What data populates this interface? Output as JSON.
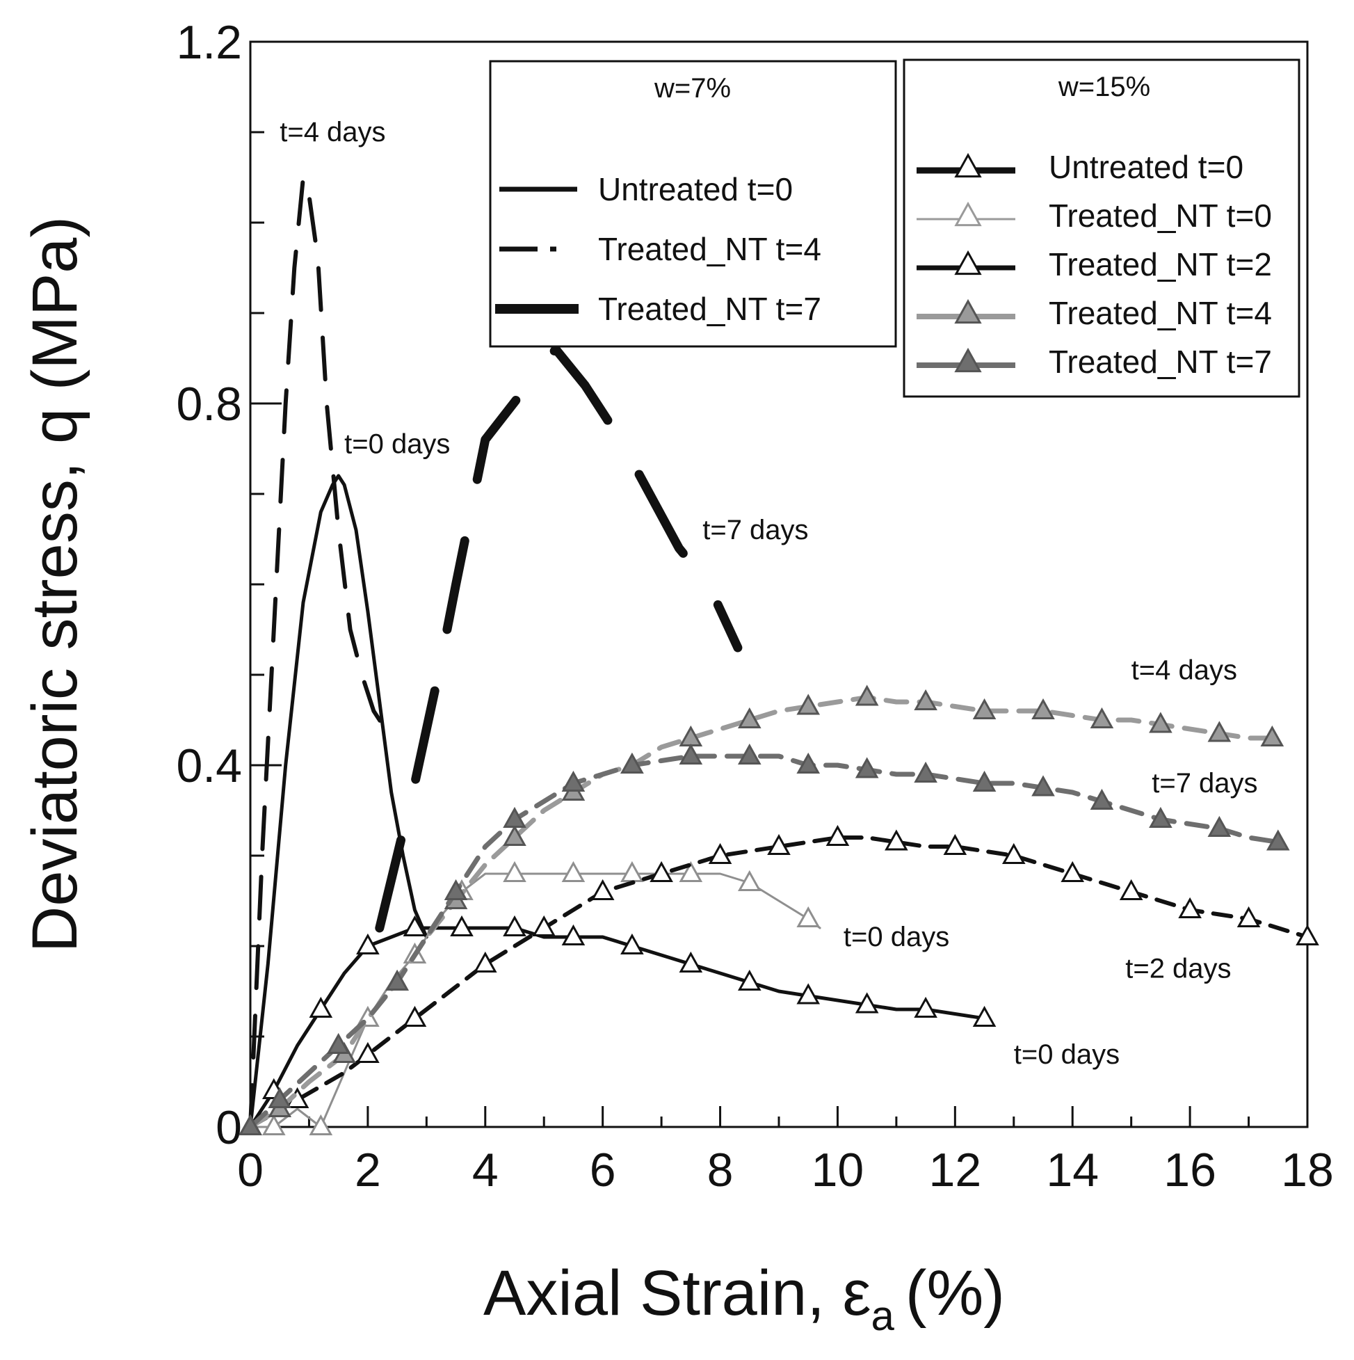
{
  "chart_data": {
    "type": "line",
    "title": "",
    "xlabel": "Axial Strain, ε",
    "xlabel_sub": "a",
    "xlabel_unit": "(%)",
    "ylabel": "Deviatoric stress, q (MPa)",
    "xlim": [
      0,
      18
    ],
    "ylim": [
      0,
      1.2
    ],
    "xticks": [
      0,
      2,
      4,
      6,
      8,
      10,
      12,
      14,
      16,
      18
    ],
    "xtick_labels": [
      "0",
      "2",
      "4",
      "6",
      "8",
      "10",
      "12",
      "14",
      "16",
      "18"
    ],
    "yticks": [
      0,
      0.4,
      0.8,
      1.2
    ],
    "ytick_labels": [
      "0",
      "0.4",
      "0.8",
      "1.2"
    ],
    "grid": false,
    "legends": [
      {
        "title": "w=7%",
        "placement": "top-center",
        "entries": [
          "Untreated t=0",
          "Treated_NT t=4",
          "Treated_NT t=7"
        ]
      },
      {
        "title": "w=15%",
        "placement": "top-right",
        "entries": [
          "Untreated t=0",
          "Treated_NT t=0",
          "Treated_NT t=2",
          "Treated_NT t=4",
          "Treated_NT t=7"
        ]
      }
    ],
    "annotations": [
      {
        "text": "t=4 days",
        "x": 0.5,
        "y": 1.09
      },
      {
        "text": "t=0 days",
        "x": 1.6,
        "y": 0.745
      },
      {
        "text": "t=7 days",
        "x": 7.7,
        "y": 0.65
      },
      {
        "text": "t=4 days",
        "x": 15.0,
        "y": 0.495
      },
      {
        "text": "t=7 days",
        "x": 15.35,
        "y": 0.37
      },
      {
        "text": "t=0 days",
        "x": 10.1,
        "y": 0.2
      },
      {
        "text": "t=2 days",
        "x": 14.9,
        "y": 0.165
      },
      {
        "text": "t=0 days",
        "x": 13.0,
        "y": 0.07
      }
    ],
    "series": [
      {
        "name": "w=7% Untreated t=0",
        "style": "solid",
        "color": "#111111",
        "x": [
          0,
          0.3,
          0.6,
          0.9,
          1.2,
          1.4,
          1.5,
          1.6,
          1.8,
          2.0,
          2.2,
          2.4,
          2.6,
          2.8,
          3.0
        ],
        "y": [
          0,
          0.18,
          0.4,
          0.58,
          0.68,
          0.71,
          0.72,
          0.71,
          0.66,
          0.57,
          0.47,
          0.37,
          0.3,
          0.24,
          0.21
        ]
      },
      {
        "name": "w=7% Treated_NT t=4",
        "style": "dashed",
        "color": "#111111",
        "x": [
          0,
          0.2,
          0.4,
          0.6,
          0.75,
          0.9,
          1.0,
          1.15,
          1.3,
          1.5,
          1.7,
          1.9,
          2.1,
          2.3,
          2.5
        ],
        "y": [
          0,
          0.3,
          0.55,
          0.8,
          0.95,
          1.05,
          1.03,
          0.96,
          0.8,
          0.66,
          0.55,
          0.5,
          0.46,
          0.44,
          0.43
        ]
      },
      {
        "name": "w=7% Treated_NT t=7",
        "style": "thick",
        "color": "#111111",
        "x": [
          2.2,
          2.5,
          2.8,
          3.2,
          3.5,
          3.75,
          4.0,
          5.2,
          5.7,
          6.3,
          7.3,
          7.8,
          8.3
        ],
        "y": [
          0.22,
          0.3,
          0.38,
          0.5,
          0.6,
          0.68,
          0.76,
          0.86,
          0.82,
          0.76,
          0.64,
          0.6,
          0.53
        ]
      },
      {
        "name": "w=15% Untreated t=0",
        "style": "solid-triangle-open",
        "color": "#111111",
        "x": [
          0,
          0.4,
          0.8,
          1.2,
          1.6,
          2.0,
          2.4,
          2.8,
          3.2,
          3.6,
          4.0,
          4.5,
          5.0,
          5.5,
          6.0,
          6.5,
          7.0,
          7.5,
          8.0,
          8.5,
          9.0,
          9.5,
          10.0,
          10.5,
          11.0,
          11.5,
          12.0,
          12.5
        ],
        "y": [
          0,
          0.04,
          0.09,
          0.13,
          0.17,
          0.2,
          0.21,
          0.22,
          0.22,
          0.22,
          0.22,
          0.22,
          0.21,
          0.21,
          0.21,
          0.2,
          0.19,
          0.18,
          0.17,
          0.16,
          0.15,
          0.145,
          0.14,
          0.135,
          0.13,
          0.13,
          0.125,
          0.12
        ]
      },
      {
        "name": "w=15% Treated_NT t=0",
        "style": "thin-triangle-open",
        "color": "#8f8f8f",
        "x": [
          0,
          0.4,
          0.8,
          1.2,
          1.6,
          2.0,
          2.4,
          2.8,
          3.2,
          3.6,
          4.0,
          4.5,
          5.0,
          5.5,
          6.0,
          6.5,
          7.0,
          7.5,
          8.0,
          8.5,
          9.0,
          9.5,
          9.7
        ],
        "y": [
          0,
          0.0,
          0.02,
          0.0,
          0.06,
          0.12,
          0.16,
          0.19,
          0.23,
          0.26,
          0.28,
          0.28,
          0.28,
          0.28,
          0.28,
          0.28,
          0.28,
          0.28,
          0.28,
          0.27,
          0.25,
          0.23,
          0.22
        ]
      },
      {
        "name": "w=15% Treated_NT t=2",
        "style": "dashed-triangle-open",
        "color": "#111111",
        "x": [
          0,
          0.8,
          1.6,
          2.0,
          2.4,
          2.8,
          3.4,
          4.0,
          4.5,
          5.0,
          5.5,
          6.0,
          6.5,
          7.0,
          7.5,
          8.0,
          8.5,
          9.0,
          9.5,
          10.0,
          10.5,
          11.0,
          11.5,
          12.0,
          12.5,
          13.0,
          13.5,
          14.0,
          14.5,
          15.0,
          15.5,
          16.0,
          16.5,
          17.0,
          17.5,
          18.0
        ],
        "y": [
          0,
          0.03,
          0.06,
          0.08,
          0.1,
          0.12,
          0.15,
          0.18,
          0.2,
          0.22,
          0.24,
          0.26,
          0.27,
          0.28,
          0.29,
          0.3,
          0.305,
          0.31,
          0.315,
          0.32,
          0.32,
          0.315,
          0.31,
          0.31,
          0.305,
          0.3,
          0.29,
          0.28,
          0.27,
          0.26,
          0.25,
          0.24,
          0.235,
          0.23,
          0.22,
          0.21
        ]
      },
      {
        "name": "w=15% Treated_NT t=4",
        "style": "dashed-triangle-light",
        "color": "#9a9a9a",
        "x": [
          0,
          0.5,
          1.0,
          1.6,
          2.0,
          2.5,
          3.0,
          3.5,
          4.0,
          4.5,
          5.0,
          5.5,
          6.0,
          6.5,
          7.0,
          7.5,
          8.0,
          8.5,
          9.0,
          9.5,
          10.0,
          10.5,
          11.0,
          11.5,
          12.0,
          12.5,
          13.0,
          13.5,
          14.0,
          14.5,
          15.0,
          15.5,
          16.0,
          16.5,
          17.0,
          17.4
        ],
        "y": [
          0,
          0.02,
          0.05,
          0.08,
          0.12,
          0.16,
          0.21,
          0.25,
          0.29,
          0.32,
          0.35,
          0.37,
          0.39,
          0.4,
          0.42,
          0.43,
          0.44,
          0.45,
          0.46,
          0.465,
          0.47,
          0.475,
          0.47,
          0.47,
          0.465,
          0.46,
          0.46,
          0.46,
          0.455,
          0.45,
          0.45,
          0.445,
          0.44,
          0.435,
          0.43,
          0.43
        ]
      },
      {
        "name": "w=15% Treated_NT t=7",
        "style": "dashed-triangle-dark",
        "color": "#6e6e6e",
        "x": [
          0,
          0.5,
          1.0,
          1.5,
          2.0,
          2.5,
          3.0,
          3.5,
          4.0,
          4.5,
          5.0,
          5.5,
          6.0,
          6.5,
          7.0,
          7.5,
          8.0,
          8.5,
          9.0,
          9.5,
          10.0,
          10.5,
          11.0,
          11.5,
          12.0,
          12.5,
          13.0,
          13.5,
          14.0,
          14.5,
          15.0,
          15.5,
          16.0,
          16.5,
          17.0,
          17.5
        ],
        "y": [
          0,
          0.03,
          0.06,
          0.09,
          0.12,
          0.16,
          0.21,
          0.26,
          0.31,
          0.34,
          0.36,
          0.38,
          0.39,
          0.4,
          0.405,
          0.41,
          0.41,
          0.41,
          0.41,
          0.4,
          0.4,
          0.395,
          0.39,
          0.39,
          0.385,
          0.38,
          0.38,
          0.375,
          0.37,
          0.36,
          0.35,
          0.34,
          0.335,
          0.33,
          0.32,
          0.315
        ]
      }
    ]
  }
}
